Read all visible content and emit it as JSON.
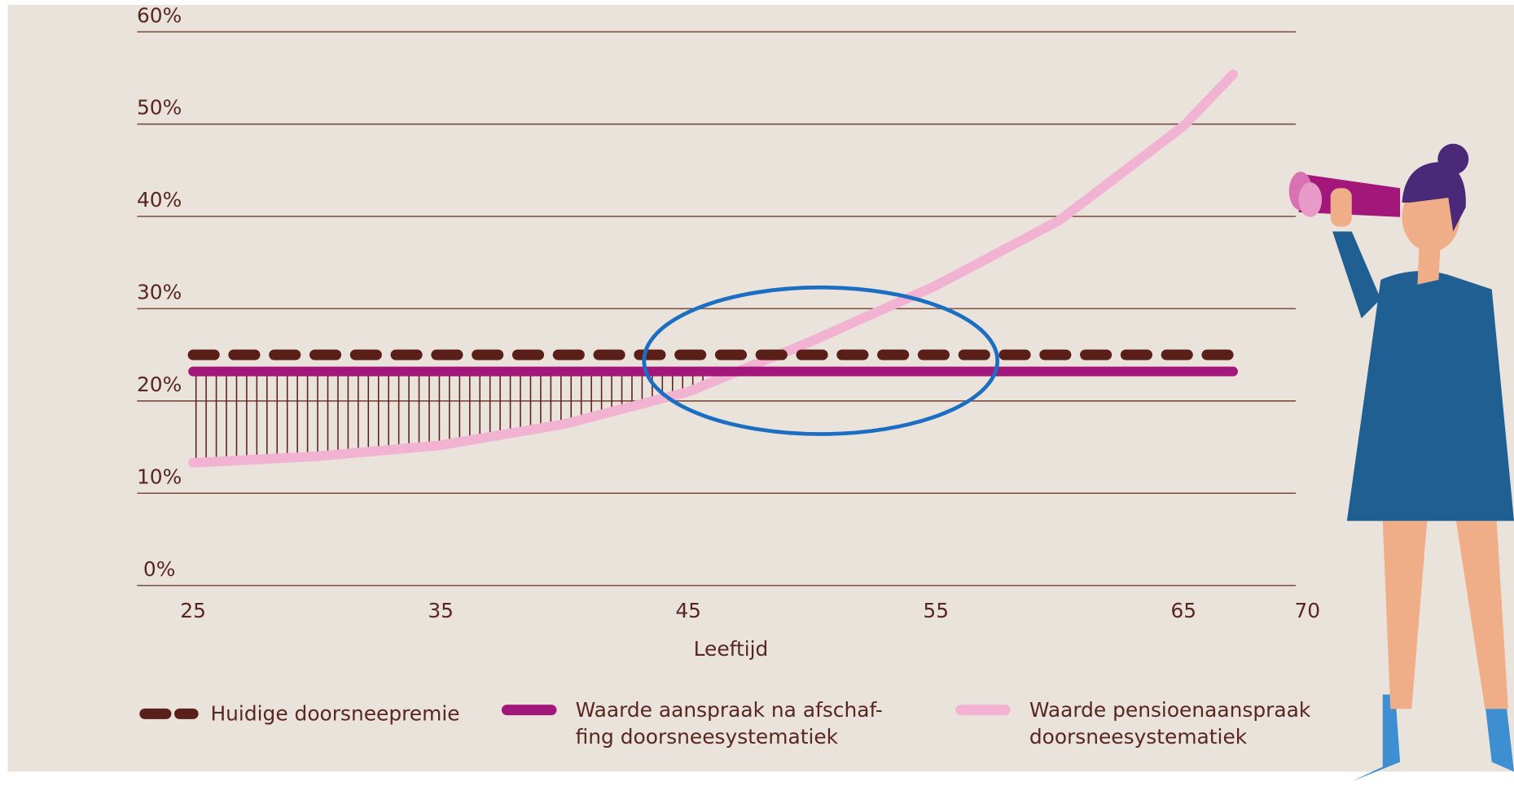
{
  "chart_data": {
    "type": "line",
    "x_label": "Leeftijd",
    "xlim": [
      25,
      70
    ],
    "xticks": [
      25,
      35,
      45,
      55,
      65,
      70
    ],
    "ylim": [
      0,
      60
    ],
    "yticks": [
      {
        "value": 0,
        "label": "0%"
      },
      {
        "value": 10,
        "label": "10%"
      },
      {
        "value": 20,
        "label": "20%"
      },
      {
        "value": 30,
        "label": "30%"
      },
      {
        "value": 40,
        "label": "40%"
      },
      {
        "value": 50,
        "label": "50%"
      },
      {
        "value": 60,
        "label": "60%"
      }
    ],
    "grid": true,
    "series": [
      {
        "name": "Huidige doorsneepremie",
        "color": "#5b1f1a",
        "style": "dashed",
        "x": [
          25,
          67
        ],
        "values": [
          25,
          25
        ]
      },
      {
        "name": "Waarde aanspraak na afschaf-\nfing doorsneesystematiek",
        "color": "#a3177a",
        "style": "solid",
        "x": [
          25,
          67
        ],
        "values": [
          23.2,
          23.2
        ]
      },
      {
        "name": "Waarde pensioenaanspraak\ndoorsneesystematiek",
        "color": "#f2b3d3",
        "style": "solid",
        "x": [
          25,
          30,
          35,
          40,
          45,
          50,
          55,
          60,
          65,
          67
        ],
        "values": [
          13.3,
          14,
          15.2,
          17.5,
          21,
          26.5,
          32.5,
          39.6,
          49.8,
          55.4
        ]
      }
    ]
  }
}
